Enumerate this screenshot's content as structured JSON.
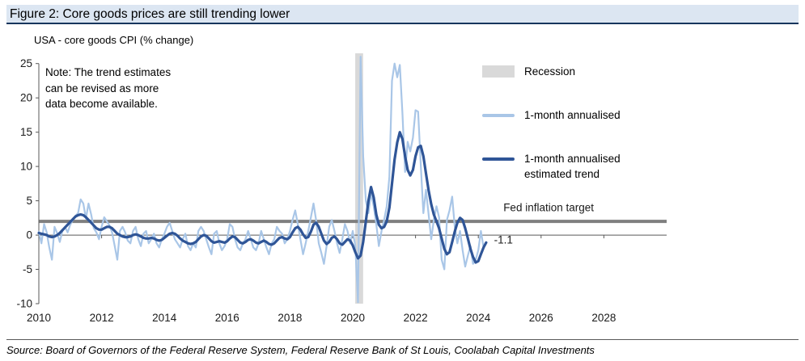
{
  "figure": {
    "title": "Figure 2: Core goods prices are still trending lower",
    "subtitle": "USA - core goods CPI (% change)",
    "note": "Note: The trend estimates can be revised as more data become available.",
    "source": "Source: Board of Governors of the Federal Reserve System, Federal Reserve Bank of St Louis, Coolabah Capital Investments"
  },
  "legend": [
    {
      "label": "Recession",
      "type": "rect",
      "color": "#d9d9d9"
    },
    {
      "label": "1-month annualised",
      "type": "line",
      "color": "#a9c6e7"
    },
    {
      "label": "1-month annualised estimated trend",
      "type": "line",
      "color": "#2f5597"
    }
  ],
  "chart_data": {
    "type": "line",
    "title": "USA - core goods CPI (% change)",
    "xlabel": "",
    "ylabel": "",
    "xlim": [
      2010,
      2030
    ],
    "ylim": [
      -10,
      25
    ],
    "y_plot_max": 26.5,
    "x_ticks": [
      2010,
      2012,
      2014,
      2016,
      2018,
      2020,
      2022,
      2024,
      2026,
      2028
    ],
    "y_ticks": [
      -10,
      -5,
      0,
      5,
      10,
      15,
      20,
      25
    ],
    "grid": false,
    "x_start": 2010,
    "x_step_months": 1,
    "recession_bands": [
      [
        2020.08,
        2020.33
      ]
    ],
    "colors": {
      "recession": "#d9d9d9",
      "axis": "#595959"
    },
    "target_line": {
      "y": 2,
      "color": "#7f7f7f",
      "label": "Fed inflation target",
      "label_x": 2024.8,
      "label_y": 3.5
    },
    "annotations": [
      {
        "text": "-1.1",
        "x": 2024.5,
        "y": -1.2
      }
    ],
    "series": [
      {
        "name": "1-month annualised",
        "color": "#a9c6e7",
        "width": 2.2,
        "values": [
          0.5,
          -1.2,
          1.6,
          0.4,
          -1.8,
          -3.6,
          1.2,
          0.3,
          -1.0,
          0.6,
          1.2,
          0.4,
          1.5,
          2.2,
          2.8,
          3.2,
          5.2,
          4.6,
          2.4,
          4.6,
          3.0,
          1.0,
          0.4,
          -0.6,
          1.2,
          2.6,
          2.0,
          1.4,
          0.4,
          -1.6,
          -3.6,
          0.6,
          1.2,
          0.4,
          -0.8,
          -1.2,
          0.6,
          1.2,
          -0.6,
          -1.6,
          0.2,
          0.6,
          -1.2,
          -0.6,
          0.2,
          -1.2,
          -1.8,
          -0.6,
          0.2,
          1.2,
          1.8,
          0.6,
          -0.6,
          -1.2,
          -1.8,
          -0.6,
          0.2,
          -1.6,
          -2.2,
          -1.2,
          -1.8,
          0.6,
          1.2,
          0.6,
          -0.6,
          -1.8,
          -2.8,
          0.2,
          0.6,
          -1.2,
          -2.2,
          -1.6,
          -0.6,
          1.6,
          1.2,
          -0.6,
          -1.8,
          -2.2,
          -1.2,
          -0.6,
          0.6,
          -0.6,
          -1.8,
          -2.2,
          -1.2,
          0.6,
          -0.6,
          -1.8,
          -2.8,
          -1.2,
          -0.6,
          1.2,
          0.6,
          0.2,
          -1.2,
          -0.6,
          0.6,
          2.2,
          3.6,
          1.6,
          -0.6,
          -2.8,
          -1.2,
          0.6,
          2.6,
          4.6,
          2.2,
          -1.2,
          -2.6,
          -4.2,
          -1.6,
          1.2,
          2.2,
          0.6,
          -1.2,
          -2.6,
          -0.6,
          1.6,
          0.6,
          -1.2,
          0.6,
          -1.6,
          -9.8,
          26.0,
          11.5,
          5.0,
          3.2,
          6.2,
          4.2,
          1.6,
          -1.6,
          0.6,
          2.2,
          4.2,
          8.5,
          22.5,
          25.0,
          23.0,
          24.8,
          17.8,
          9.2,
          13.6,
          12.2,
          14.2,
          18.2,
          18.0,
          10.2,
          3.2,
          6.6,
          3.0,
          -0.6,
          2.2,
          4.2,
          2.6,
          -3.6,
          -5.0,
          2.2,
          3.6,
          5.6,
          1.2,
          -1.2,
          0.6,
          -2.2,
          -4.6,
          -3.0,
          -1.6,
          -4.2,
          -3.6,
          -2.2,
          0.6,
          -1.8,
          -1.0
        ]
      },
      {
        "name": "1-month annualised estimated trend",
        "color": "#2f5597",
        "width": 3.2,
        "values": [
          0.3,
          0.2,
          0.1,
          0.0,
          -0.2,
          -0.3,
          -0.2,
          0.0,
          0.3,
          0.7,
          1.1,
          1.5,
          1.9,
          2.3,
          2.7,
          2.9,
          3.0,
          2.9,
          2.6,
          2.2,
          1.8,
          1.4,
          1.0,
          0.8,
          0.8,
          1.0,
          1.2,
          1.2,
          1.0,
          0.6,
          0.2,
          0.0,
          -0.2,
          -0.3,
          -0.3,
          -0.2,
          0.0,
          0.1,
          0.0,
          -0.2,
          -0.4,
          -0.5,
          -0.5,
          -0.4,
          -0.5,
          -0.7,
          -0.8,
          -0.7,
          -0.4,
          -0.1,
          0.2,
          0.3,
          0.2,
          -0.1,
          -0.5,
          -0.8,
          -1.0,
          -1.2,
          -1.3,
          -1.2,
          -1.0,
          -0.6,
          -0.2,
          0.0,
          -0.1,
          -0.5,
          -0.9,
          -1.1,
          -1.0,
          -0.9,
          -1.0,
          -1.1,
          -0.9,
          -0.5,
          -0.2,
          -0.3,
          -0.7,
          -1.1,
          -1.2,
          -1.0,
          -0.7,
          -0.6,
          -0.8,
          -1.1,
          -1.2,
          -1.0,
          -0.8,
          -1.0,
          -1.3,
          -1.4,
          -1.2,
          -0.8,
          -0.4,
          -0.3,
          -0.5,
          -0.6,
          -0.3,
          0.4,
          1.0,
          1.2,
          0.8,
          0.1,
          -0.4,
          -0.3,
          0.5,
          1.5,
          1.8,
          1.2,
          0.2,
          -0.8,
          -1.3,
          -1.0,
          -0.4,
          -0.2,
          -0.6,
          -1.2,
          -1.4,
          -1.0,
          -0.6,
          -0.8,
          -1.5,
          -2.5,
          -3.4,
          -3.0,
          -1.0,
          2.0,
          5.0,
          7.0,
          5.5,
          3.0,
          1.5,
          1.0,
          1.2,
          2.0,
          4.0,
          7.5,
          11.0,
          13.5,
          15.0,
          14.0,
          11.5,
          9.5,
          8.7,
          9.5,
          11.5,
          12.8,
          13.0,
          11.5,
          9.0,
          6.5,
          4.5,
          3.0,
          2.0,
          1.0,
          -0.5,
          -2.0,
          -2.8,
          -2.5,
          -1.0,
          0.5,
          1.8,
          2.5,
          2.2,
          1.0,
          -0.5,
          -2.0,
          -3.2,
          -4.0,
          -3.8,
          -2.8,
          -1.8,
          -1.1
        ]
      }
    ]
  }
}
